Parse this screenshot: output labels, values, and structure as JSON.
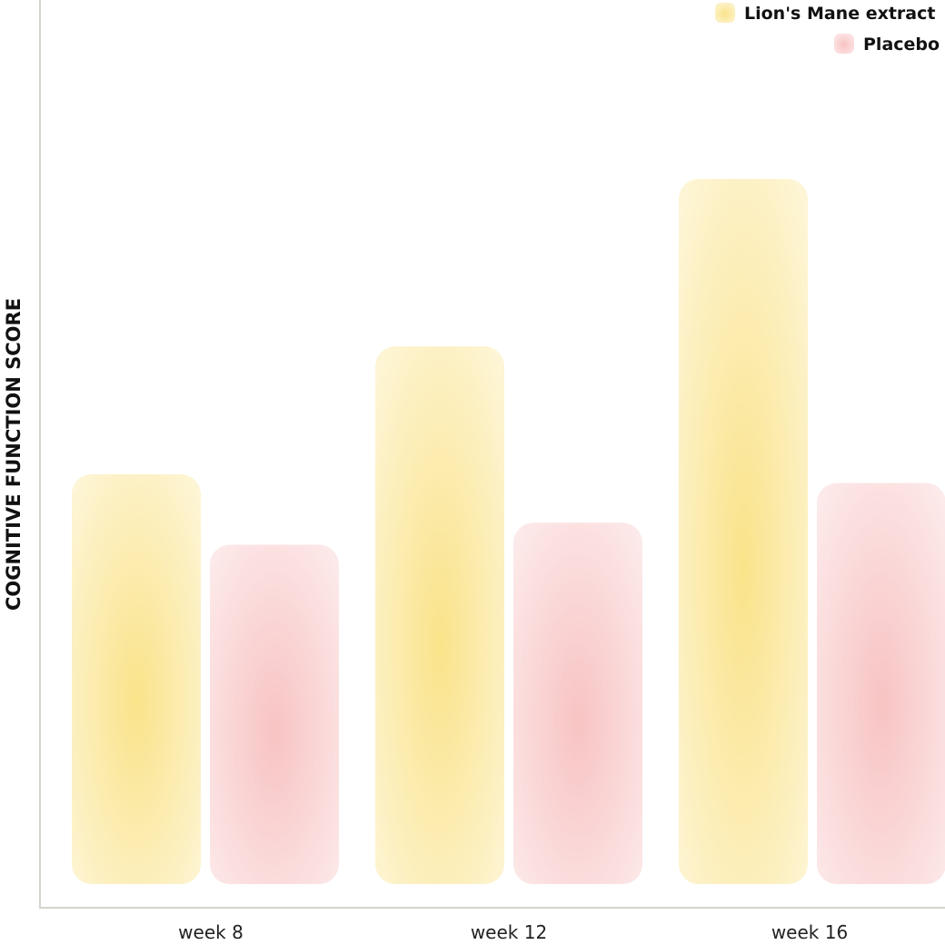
{
  "chart_data": {
    "type": "bar",
    "title": "",
    "xlabel": "",
    "ylabel": "COGNITIVE FUNCTION SCORE",
    "categories": [
      "week 8",
      "week 12",
      "week 16"
    ],
    "series": [
      {
        "name": "Lion's Mane extract",
        "values": [
          46.5,
          61,
          80
        ],
        "color": "#fae38a"
      },
      {
        "name": "Placebo",
        "values": [
          38.5,
          41,
          45.5
        ],
        "color": "#f8c3c3"
      }
    ],
    "ylim": [
      0,
      100
    ],
    "grid": false,
    "legend_position": "top-right"
  }
}
